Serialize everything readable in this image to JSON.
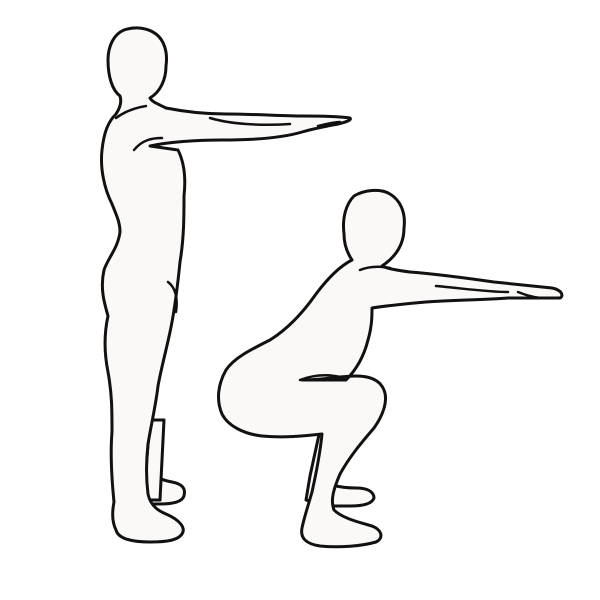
{
  "illustration": {
    "subject": "squat-exercise",
    "poses": [
      "standing",
      "squatting"
    ]
  },
  "colors": {
    "background": "#ffffff",
    "figure_fill": "#fbf8f8",
    "outline": "#111111"
  }
}
